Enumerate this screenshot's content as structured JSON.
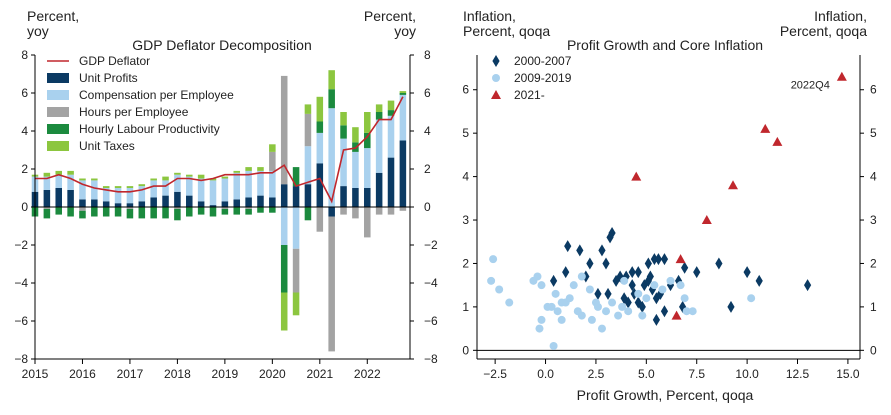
{
  "chart_data": [
    {
      "type": "bar",
      "title": "GDP Deflator Decomposition",
      "ylabel_left": "Percent,\nyoy",
      "ylabel_right": "Percent,\nyoy",
      "ylim": [
        -8,
        8
      ],
      "yticks": [
        -8,
        -6,
        -4,
        -2,
        0,
        2,
        4,
        6,
        8
      ],
      "xlim": [
        2015.0,
        2022.9
      ],
      "xticks": [
        "2015",
        "2016",
        "2017",
        "2018",
        "2019",
        "2020",
        "2021",
        "2022"
      ],
      "stacked": true,
      "categories": [
        "2015Q1",
        "2015Q2",
        "2015Q3",
        "2015Q4",
        "2016Q1",
        "2016Q2",
        "2016Q3",
        "2016Q4",
        "2017Q1",
        "2017Q2",
        "2017Q3",
        "2017Q4",
        "2018Q1",
        "2018Q2",
        "2018Q3",
        "2018Q4",
        "2019Q1",
        "2019Q2",
        "2019Q3",
        "2019Q4",
        "2020Q1",
        "2020Q2",
        "2020Q3",
        "2020Q4",
        "2021Q1",
        "2021Q2",
        "2021Q3",
        "2021Q4",
        "2022Q1",
        "2022Q2",
        "2022Q3",
        "2022Q4"
      ],
      "series": [
        {
          "name": "Unit Profits",
          "color": "#0b3a63",
          "values": [
            0.8,
            0.9,
            1.0,
            0.9,
            0.4,
            0.4,
            0.3,
            0.2,
            0.2,
            0.3,
            0.5,
            0.6,
            0.8,
            0.6,
            0.3,
            0.1,
            0.3,
            0.4,
            0.5,
            0.6,
            0.5,
            1.2,
            1.1,
            1.2,
            2.3,
            -0.5,
            1.1,
            1.0,
            1.0,
            1.8,
            2.6,
            3.5
          ]
        },
        {
          "name": "Compensation per Employee",
          "color": "#a9d1ee",
          "values": [
            0.8,
            0.7,
            0.7,
            0.8,
            1.0,
            1.0,
            0.7,
            0.8,
            0.8,
            0.8,
            0.9,
            0.8,
            0.9,
            1.0,
            1.2,
            1.3,
            1.2,
            1.4,
            1.4,
            1.3,
            1.4,
            -2.0,
            -2.2,
            2.0,
            1.6,
            5.2,
            2.5,
            1.9,
            2.1,
            2.8,
            2.2,
            2.4
          ]
        },
        {
          "name": "Hours per Employee",
          "color": "#a3a3a3",
          "values": [
            0.0,
            -0.1,
            0.0,
            0.0,
            -0.2,
            0.0,
            0.0,
            0.0,
            -0.1,
            0.0,
            0.0,
            0.0,
            -0.1,
            0.0,
            0.0,
            0.0,
            -0.1,
            0.0,
            -0.1,
            0.0,
            1.0,
            5.7,
            -2.3,
            1.7,
            -1.3,
            -7.1,
            -0.4,
            -0.6,
            -1.6,
            -0.4,
            -0.4,
            -0.2
          ]
        },
        {
          "name": "Hourly Labour Productivity",
          "color": "#1b8a3e",
          "values": [
            -0.5,
            -0.5,
            -0.4,
            -0.5,
            -0.4,
            -0.5,
            -0.5,
            -0.5,
            -0.5,
            -0.6,
            -0.6,
            -0.6,
            -0.6,
            -0.5,
            -0.4,
            -0.5,
            -0.3,
            -0.4,
            -0.3,
            -0.3,
            -0.3,
            -2.5,
            1.0,
            -0.7,
            0.6,
            1.0,
            0.7,
            0.5,
            0.8,
            0.4,
            0.3,
            0.1
          ]
        },
        {
          "name": "Unit Taxes",
          "color": "#8cc63f",
          "values": [
            0.1,
            0.2,
            0.2,
            0.2,
            0.1,
            0.1,
            0.1,
            0.1,
            0.1,
            0.1,
            0.1,
            0.2,
            0.1,
            0.1,
            0.2,
            0.1,
            0.1,
            0.1,
            0.2,
            0.2,
            0.4,
            -2.0,
            -1.2,
            0.5,
            1.3,
            1.0,
            0.7,
            0.8,
            1.1,
            0.4,
            0.5,
            0.1
          ]
        }
      ],
      "line": {
        "name": "GDP Deflator",
        "color": "#c0272d",
        "values": [
          1.5,
          1.5,
          1.7,
          1.5,
          1.2,
          1.0,
          0.9,
          0.8,
          0.8,
          0.9,
          1.1,
          1.1,
          1.5,
          1.5,
          1.4,
          1.5,
          1.7,
          1.7,
          1.7,
          1.8,
          1.8,
          2.2,
          1.1,
          1.3,
          1.5,
          0.3,
          3.0,
          3.1,
          3.7,
          4.6,
          4.6,
          5.8
        ]
      },
      "legend": "top-left"
    },
    {
      "type": "scatter",
      "title": "Profit Growth and Core Inflation",
      "ylabel_left": "Inflation,\nPercent, qoqa",
      "ylabel_right": "Inflation,\nPercent, qoqa",
      "xlabel": "Profit Growth, Percent, qoqa",
      "xlim": [
        -3.4,
        15.6
      ],
      "ylim": [
        -0.2,
        6.8
      ],
      "xticks": [
        "-2.5",
        "0.0",
        "2.5",
        "5.0",
        "7.5",
        "10.0",
        "12.5",
        "15.0"
      ],
      "yticks": [
        0,
        1,
        2,
        3,
        4,
        5,
        6
      ],
      "annotation": {
        "text": "2022Q4",
        "x": 14.7,
        "y": 6.3
      },
      "legend": "top-left",
      "series": [
        {
          "name": "2000-2007",
          "marker": "diamond",
          "color": "#0b3a63",
          "points": [
            [
              0.4,
              1.6
            ],
            [
              1.1,
              2.4
            ],
            [
              1.7,
              2.3
            ],
            [
              1.0,
              1.8
            ],
            [
              2.0,
              1.7
            ],
            [
              2.2,
              2.0
            ],
            [
              2.8,
              2.3
            ],
            [
              3.2,
              2.6
            ],
            [
              3.3,
              2.7
            ],
            [
              3.0,
              2.0
            ],
            [
              2.6,
              1.3
            ],
            [
              3.1,
              1.3
            ],
            [
              3.5,
              1.6
            ],
            [
              3.7,
              1.7
            ],
            [
              4.0,
              1.7
            ],
            [
              4.3,
              1.8
            ],
            [
              4.6,
              1.8
            ],
            [
              4.9,
              1.5
            ],
            [
              5.1,
              2.0
            ],
            [
              5.4,
              2.1
            ],
            [
              5.6,
              2.1
            ],
            [
              5.9,
              2.1
            ],
            [
              4.1,
              1.1
            ],
            [
              4.4,
              1.3
            ],
            [
              4.8,
              1.0
            ],
            [
              5.3,
              1.4
            ],
            [
              5.5,
              1.2
            ],
            [
              5.7,
              1.3
            ],
            [
              5.5,
              0.7
            ],
            [
              5.9,
              0.9
            ],
            [
              6.2,
              1.5
            ],
            [
              6.6,
              1.6
            ],
            [
              6.9,
              1.9
            ],
            [
              7.5,
              1.8
            ],
            [
              8.6,
              2.0
            ],
            [
              9.2,
              1.0
            ],
            [
              10.0,
              1.8
            ],
            [
              10.6,
              1.6
            ],
            [
              13.0,
              1.5
            ],
            [
              4.3,
              1.5
            ],
            [
              3.9,
              1.2
            ],
            [
              5.1,
              1.6
            ],
            [
              5.2,
              1.7
            ],
            [
              6.8,
              1.0
            ],
            [
              4.6,
              1.1
            ]
          ]
        },
        {
          "name": "2009-2019",
          "marker": "circle",
          "color": "#a9d1ee",
          "points": [
            [
              -2.7,
              1.6
            ],
            [
              -2.6,
              2.1
            ],
            [
              -2.3,
              1.4
            ],
            [
              -1.8,
              1.1
            ],
            [
              -0.6,
              1.6
            ],
            [
              -0.4,
              1.7
            ],
            [
              -0.2,
              1.5
            ],
            [
              -0.3,
              0.5
            ],
            [
              -0.2,
              0.7
            ],
            [
              0.1,
              1.0
            ],
            [
              0.3,
              1.0
            ],
            [
              0.5,
              1.3
            ],
            [
              0.6,
              0.9
            ],
            [
              0.8,
              1.1
            ],
            [
              1.0,
              1.1
            ],
            [
              0.4,
              0.1
            ],
            [
              0.8,
              0.7
            ],
            [
              1.2,
              1.2
            ],
            [
              1.4,
              1.5
            ],
            [
              1.6,
              0.9
            ],
            [
              1.8,
              0.8
            ],
            [
              2.2,
              1.4
            ],
            [
              2.5,
              1.1
            ],
            [
              2.6,
              1.0
            ],
            [
              2.8,
              0.5
            ],
            [
              3.0,
              0.9
            ],
            [
              3.3,
              1.1
            ],
            [
              3.6,
              0.8
            ],
            [
              3.8,
              1.0
            ],
            [
              4.1,
              0.9
            ],
            [
              4.6,
              1.3
            ],
            [
              5.0,
              1.2
            ],
            [
              5.4,
              1.5
            ],
            [
              5.8,
              1.4
            ],
            [
              6.2,
              1.6
            ],
            [
              6.7,
              1.5
            ],
            [
              7.0,
              0.9
            ],
            [
              7.3,
              0.9
            ],
            [
              10.2,
              1.2
            ],
            [
              4.8,
              0.8
            ],
            [
              1.8,
              1.7
            ],
            [
              2.3,
              0.7
            ],
            [
              3.9,
              1.6
            ],
            [
              6.9,
              1.2
            ]
          ]
        },
        {
          "name": "2021-",
          "marker": "triangle",
          "color": "#c0272d",
          "points": [
            [
              4.5,
              4.0
            ],
            [
              6.7,
              2.1
            ],
            [
              6.5,
              0.8
            ],
            [
              8.0,
              3.0
            ],
            [
              9.3,
              3.8
            ],
            [
              10.9,
              5.1
            ],
            [
              11.5,
              4.8
            ],
            [
              14.7,
              6.3
            ]
          ]
        }
      ]
    }
  ]
}
